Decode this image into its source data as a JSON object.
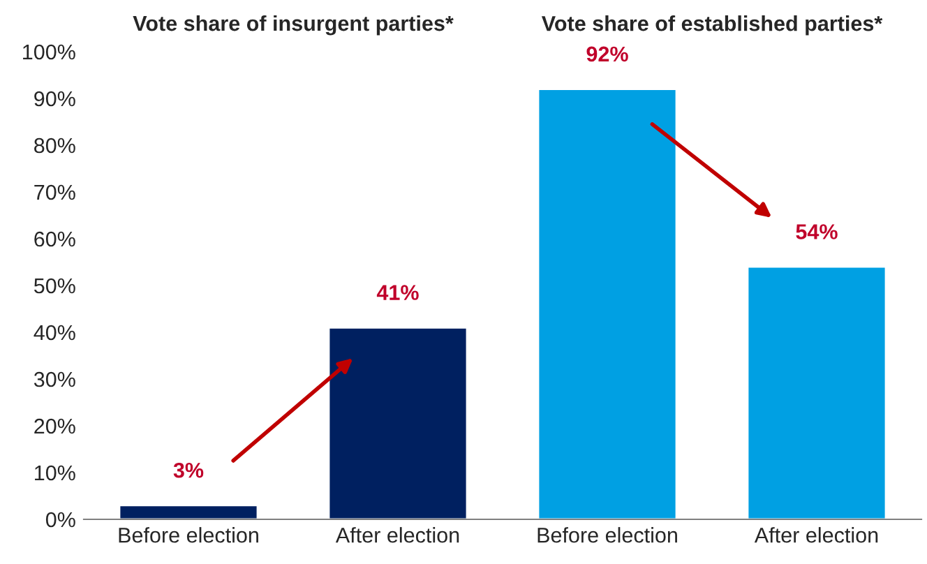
{
  "chart_data": {
    "type": "bar",
    "categories": [
      "Before election",
      "After election",
      "Before election",
      "After election"
    ],
    "values": [
      3,
      41,
      92,
      54
    ],
    "colors": [
      "#002060",
      "#002060",
      "#00a0e3",
      "#00a0e3"
    ],
    "value_labels": [
      "3%",
      "41%",
      "92%",
      "54%"
    ],
    "ylim": [
      0,
      100
    ],
    "yticks": [
      {
        "value": 0,
        "label": "0%"
      },
      {
        "value": 10,
        "label": "10%"
      },
      {
        "value": 20,
        "label": "20%"
      },
      {
        "value": 30,
        "label": "30%"
      },
      {
        "value": 40,
        "label": "40%"
      },
      {
        "value": 50,
        "label": "50%"
      },
      {
        "value": 60,
        "label": "60%"
      },
      {
        "value": 70,
        "label": "70%"
      },
      {
        "value": 80,
        "label": "80%"
      },
      {
        "value": 90,
        "label": "90%"
      },
      {
        "value": 100,
        "label": "100%"
      }
    ],
    "annotations": [
      "Vote share of insurgent parties*",
      "Vote share of established parties*"
    ],
    "grid": false,
    "legend": false
  }
}
